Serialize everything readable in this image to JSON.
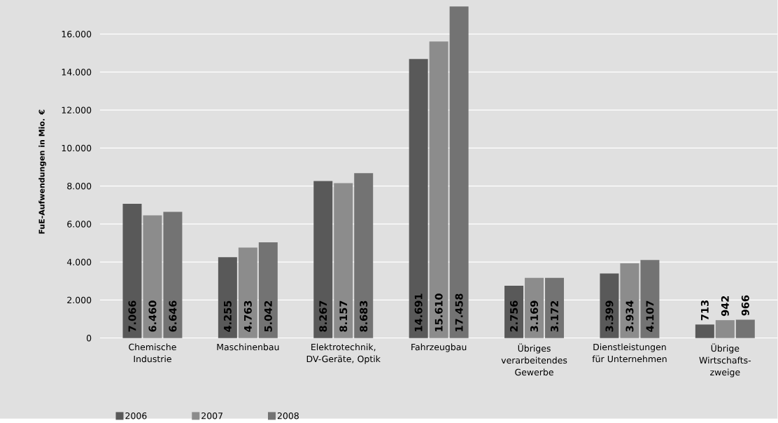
{
  "chart_data": {
    "type": "bar",
    "ylabel": "FuE-Aufwendungen in Mio. €",
    "categories": [
      "Chemische Industrie",
      "Maschinenbau",
      "Elektrotechnik, DV-Geräte, Optik",
      "Fahrzeugbau",
      "Übriges verarbeitendes Gewerbe",
      "Dienstleistungen für Unternehmen",
      "Übrige Wirtschafts-zweige"
    ],
    "series": [
      {
        "name": "2006",
        "color": "#595959",
        "values": [
          7066,
          4255,
          8267,
          14691,
          2756,
          3399,
          713
        ],
        "value_labels": [
          "7.066",
          "4.255",
          "8.267",
          "14.691",
          "2.756",
          "3.399",
          "713"
        ]
      },
      {
        "name": "2007",
        "color": "#8c8c8c",
        "values": [
          6460,
          4763,
          8157,
          15610,
          3169,
          3934,
          942
        ],
        "value_labels": [
          "6.460",
          "4.763",
          "8.157",
          "15.610",
          "3.169",
          "3.934",
          "942"
        ]
      },
      {
        "name": "2008",
        "color": "#737373",
        "values": [
          6646,
          5042,
          8683,
          17458,
          3172,
          4107,
          966
        ],
        "value_labels": [
          "6.646",
          "5.042",
          "8.683",
          "17.458",
          "3.172",
          "4.107",
          "966"
        ]
      }
    ],
    "ylim": [
      0,
      17500
    ],
    "yticks": [
      0,
      {
        "value": 2000,
        "label": "2.000"
      },
      {
        "value": 4000,
        "label": "4.000"
      },
      {
        "value": 6000,
        "label": "6.000"
      },
      {
        "value": 8000,
        "label": "8.000"
      },
      {
        "value": 10000,
        "label": "10.000"
      },
      {
        "value": 12000,
        "label": "12.000"
      },
      {
        "value": 14000,
        "label": "14.000"
      },
      {
        "value": 16000,
        "label": "16.000"
      }
    ],
    "grid": "y",
    "legend": "bottom left"
  }
}
